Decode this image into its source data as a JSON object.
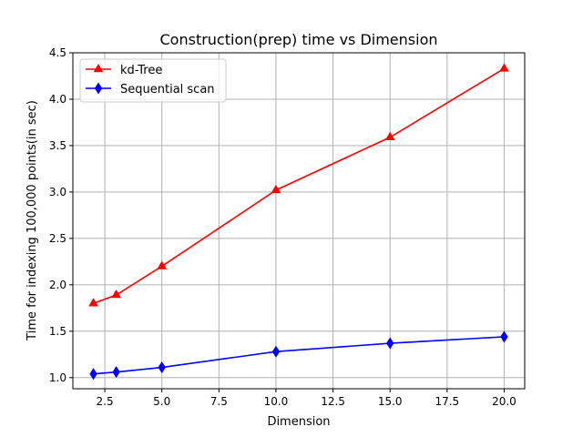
{
  "chart_data": {
    "type": "line",
    "title": "Construction(prep) time vs Dimension",
    "xlabel": "Dimension",
    "ylabel": "Time for indexing 100,000 points(in sec)",
    "xlim": [
      1.1,
      20.9
    ],
    "ylim": [
      0.88,
      4.5
    ],
    "xticks": [
      2.5,
      5.0,
      7.5,
      10.0,
      12.5,
      15.0,
      17.5,
      20.0
    ],
    "xtick_labels": [
      "2.5",
      "5.0",
      "7.5",
      "10.0",
      "12.5",
      "15.0",
      "17.5",
      "20.0"
    ],
    "yticks": [
      1.0,
      1.5,
      2.0,
      2.5,
      3.0,
      3.5,
      4.0,
      4.5
    ],
    "ytick_labels": [
      "1.0",
      "1.5",
      "2.0",
      "2.5",
      "3.0",
      "3.5",
      "4.0",
      "4.5"
    ],
    "grid": true,
    "legend_position": "top-left",
    "series": [
      {
        "name": "kd-Tree",
        "color": "#ff0000",
        "marker": "triangle-up",
        "x": [
          2,
          3,
          5,
          10,
          15,
          20
        ],
        "y": [
          1.8,
          1.89,
          2.2,
          3.02,
          3.59,
          4.33
        ]
      },
      {
        "name": "Sequential scan",
        "color": "#0000ff",
        "marker": "diamond",
        "x": [
          2,
          3,
          5,
          10,
          15,
          20
        ],
        "y": [
          1.04,
          1.06,
          1.11,
          1.28,
          1.37,
          1.44
        ]
      }
    ]
  }
}
